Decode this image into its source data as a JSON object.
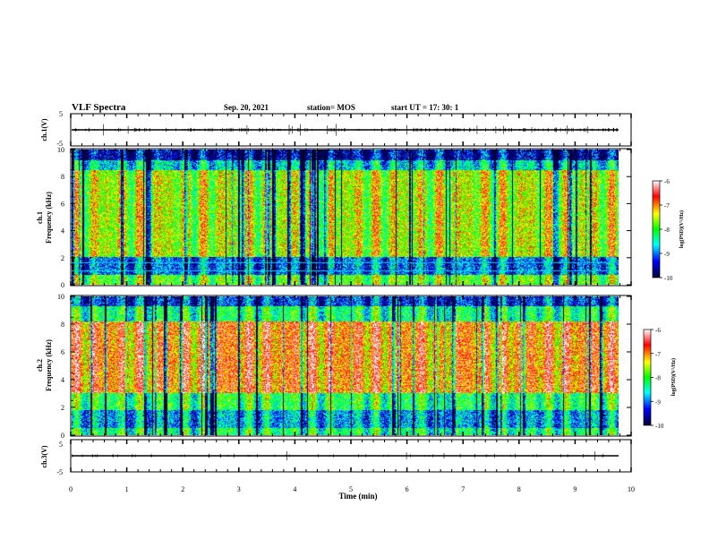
{
  "header": {
    "title": "VLF Spectra",
    "date": "Sep. 20, 2021",
    "station": "station= MOS",
    "start": "start  UT =   17: 30: 1"
  },
  "chart_data": [
    {
      "type": "line",
      "ylabel": "ch.1(V)",
      "ylim": [
        -5,
        5
      ],
      "yticks": [
        "5",
        "-5"
      ],
      "baseline": 0,
      "xlim": [
        0,
        10
      ]
    },
    {
      "type": "heatmap",
      "ylabel": "ch.1\nFrequency (kHz)",
      "ylabel_lines": [
        "ch.1",
        "Frequency (kHz)"
      ],
      "ylim": [
        0,
        10
      ],
      "yticks": [
        "0",
        "2",
        "4",
        "6",
        "8",
        "10"
      ],
      "xlim": [
        0,
        9.85
      ],
      "colorbar": {
        "label": "log(PSD)(V²/Hz)",
        "range": [
          -10,
          -6
        ],
        "ticks": [
          "-6",
          "-7",
          "-8",
          "-9",
          "-10"
        ]
      }
    },
    {
      "type": "heatmap",
      "ylabel": "ch.2\nFrequency (kHz)",
      "ylabel_lines": [
        "ch.2",
        "Frequency (kHz)"
      ],
      "ylim": [
        0,
        10
      ],
      "yticks": [
        "0",
        "2",
        "4",
        "6",
        "8",
        "10"
      ],
      "xlim": [
        0,
        9.85
      ],
      "colorbar": {
        "label": "log(PSD)(V²/Hz)",
        "range": [
          -10,
          -6
        ],
        "ticks": [
          "-6",
          "-7",
          "-8",
          "-9",
          "-10"
        ]
      }
    },
    {
      "type": "line",
      "ylabel": "ch.3(V)",
      "ylim": [
        -5,
        5
      ],
      "yticks": [
        "5",
        "-5"
      ],
      "baseline": 0,
      "xlim": [
        0,
        10
      ]
    }
  ],
  "xaxis": {
    "label": "Time  (min)",
    "ticks": [
      "0",
      "1",
      "2",
      "3",
      "4",
      "5",
      "6",
      "7",
      "8",
      "9",
      "10"
    ],
    "range": [
      0,
      10
    ]
  },
  "colors": {
    "cmap": [
      "#000033",
      "#0000ff",
      "#00ffff",
      "#00ff00",
      "#ffff00",
      "#ff0000",
      "#ffffff"
    ]
  }
}
